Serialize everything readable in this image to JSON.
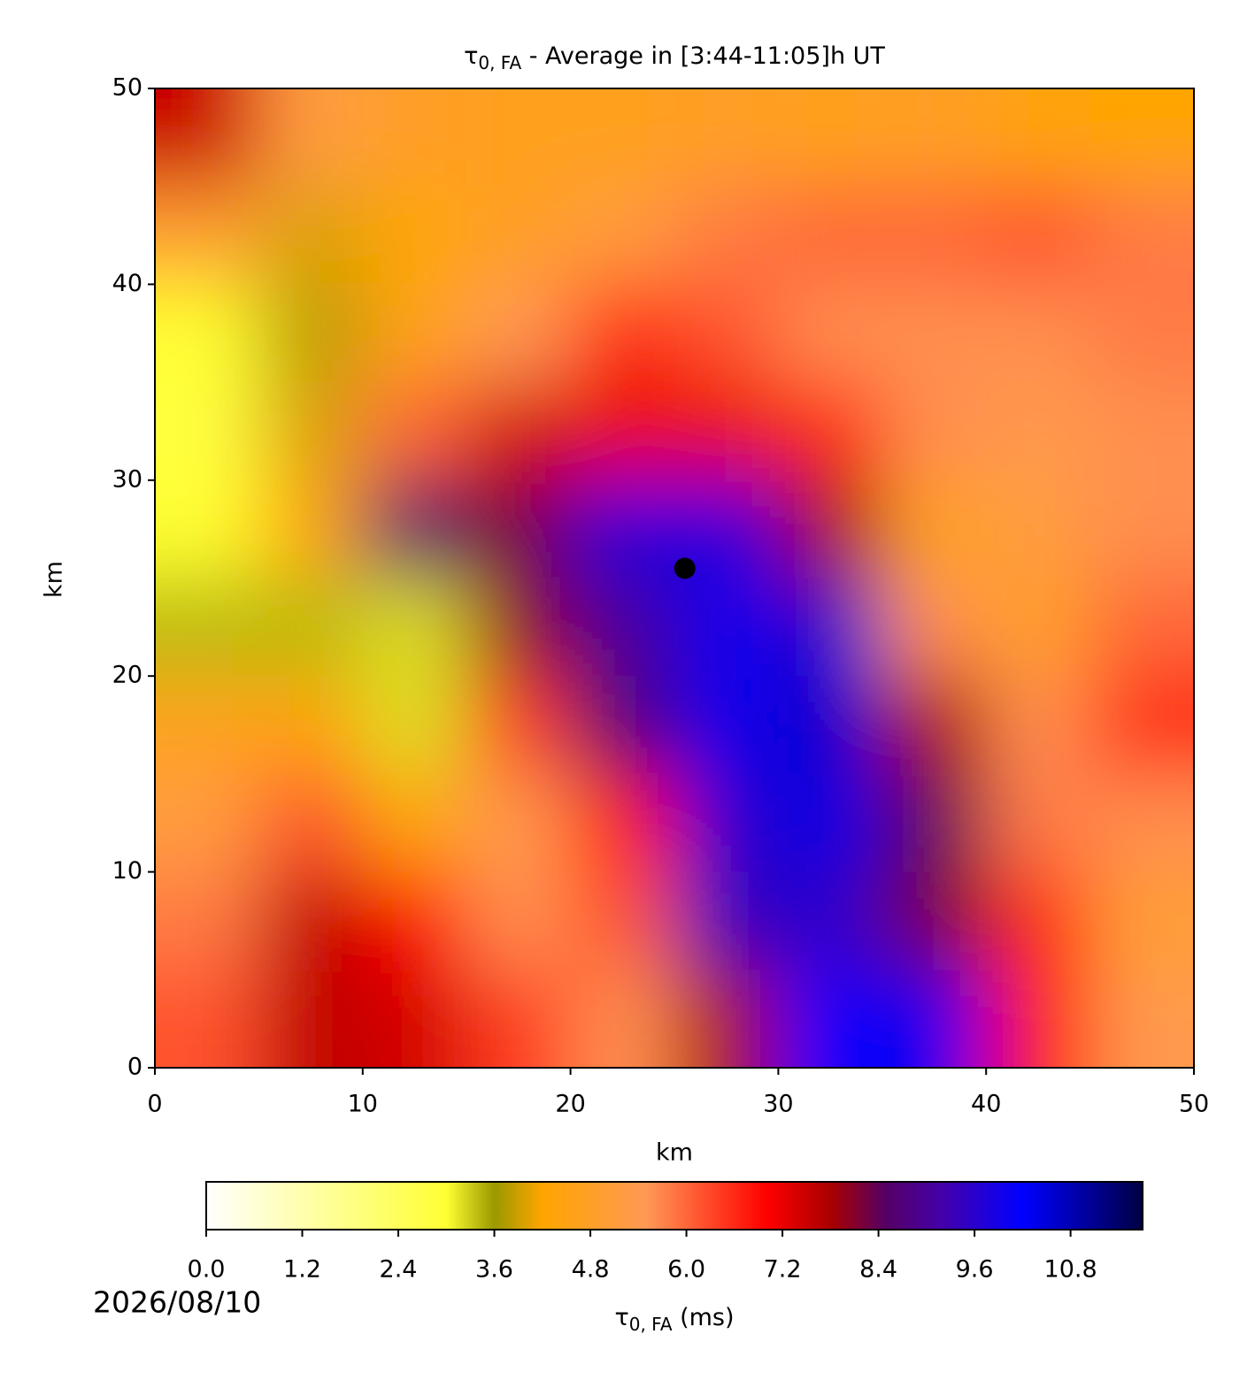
{
  "chart_data": {
    "type": "heatmap",
    "title": {
      "symbol": "τ",
      "subscript": "0, FA",
      "text": " - Average in [3:44-11:05]h UT"
    },
    "xlabel": "km",
    "ylabel": "km",
    "xlim": [
      0,
      50
    ],
    "ylim": [
      0,
      50
    ],
    "xticks": [
      0,
      10,
      20,
      30,
      40,
      50
    ],
    "yticks": [
      0,
      10,
      20,
      30,
      40,
      50
    ],
    "x": [
      2.5,
      7.5,
      12.5,
      17.5,
      22.5,
      27.5,
      32.5,
      37.5,
      42.5,
      47.5
    ],
    "y": [
      47.5,
      42.5,
      37.5,
      32.5,
      27.5,
      22.5,
      17.5,
      12.5,
      7.5,
      2.5
    ],
    "values": [
      [
        7.5,
        5.2,
        4.8,
        4.6,
        4.6,
        4.8,
        4.6,
        4.8,
        4.4,
        4.2
      ],
      [
        5,
        4,
        4.2,
        4.8,
        5.2,
        5.8,
        6,
        6,
        6.2,
        5.8
      ],
      [
        3,
        3.8,
        4.5,
        5.5,
        6.6,
        6.2,
        5.6,
        5.6,
        5.6,
        5.8
      ],
      [
        2.8,
        4,
        6,
        7.4,
        7.2,
        7.2,
        6.6,
        5.6,
        5.4,
        5.6
      ],
      [
        3,
        4.2,
        8.6,
        8.2,
        9.8,
        9.8,
        7.8,
        4.6,
        5.2,
        5.6
      ],
      [
        3.4,
        3.4,
        3.2,
        8,
        9,
        10,
        9.6,
        5.6,
        4.8,
        6
      ],
      [
        4.6,
        4.4,
        3.2,
        6.4,
        8.6,
        10,
        10.6,
        7.8,
        5.6,
        6.6
      ],
      [
        5.2,
        6.2,
        4.2,
        5.4,
        7,
        9.6,
        10.4,
        8.4,
        5.8,
        5.6
      ],
      [
        5.8,
        7.6,
        7,
        5.6,
        6.2,
        9.4,
        9.6,
        8.2,
        6.6,
        5
      ],
      [
        6.2,
        7.6,
        7.4,
        6.4,
        5.6,
        7.8,
        10.2,
        10,
        7,
        5.4
      ]
    ],
    "marker": {
      "x": 25.5,
      "y": 25.5,
      "color": "#000000"
    },
    "colorbar": {
      "label": {
        "symbol": "τ",
        "subscript": "0, FA",
        "text": " (ms)"
      },
      "clim": [
        0,
        11.7
      ],
      "ticks": [
        {
          "value": 0,
          "label": "0.0"
        },
        1.2,
        2.4,
        3.6,
        4.8,
        {
          "value": 6,
          "label": "6.0"
        },
        7.2,
        8.4,
        9.6,
        10.8
      ],
      "colormap": [
        {
          "value": 0,
          "color": "#ffffff"
        },
        {
          "value": 3,
          "color": "#ffff33"
        },
        {
          "value": 3.6,
          "color": "#999900"
        },
        {
          "value": 4.2,
          "color": "#ffa500"
        },
        {
          "value": 5.5,
          "color": "#ff9955"
        },
        {
          "value": 7,
          "color": "#ff0000"
        },
        {
          "value": 7.8,
          "color": "#aa0000"
        },
        {
          "value": 8.5,
          "color": "#550066"
        },
        {
          "value": 9.2,
          "color": "#4400aa"
        },
        {
          "value": 10.2,
          "color": "#0000ff"
        },
        {
          "value": 11.7,
          "color": "#000044"
        }
      ]
    }
  },
  "date": "2026/08/10"
}
